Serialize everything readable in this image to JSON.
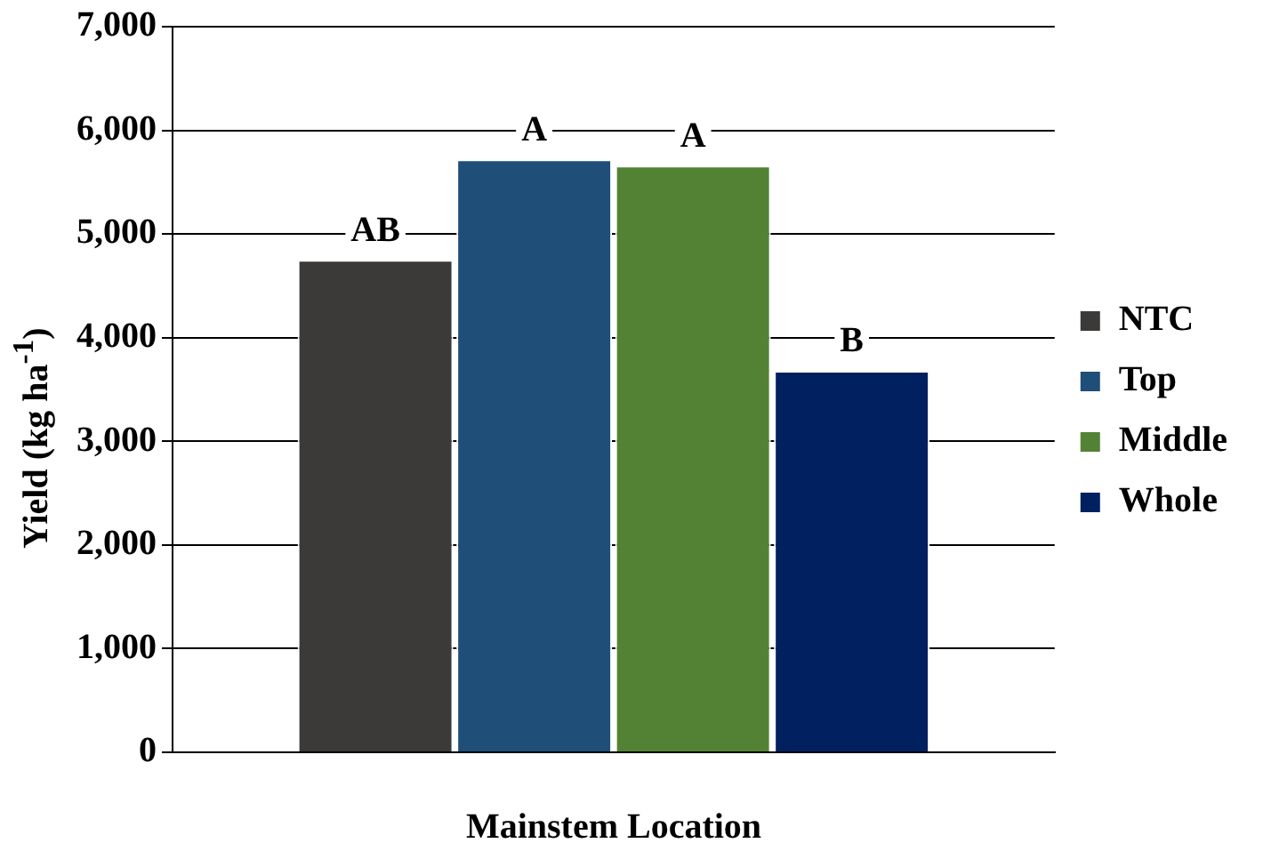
{
  "chart_data": {
    "type": "bar",
    "xlabel": "Mainstem Location",
    "ylabel": "Yield (kg ha$^{-1}$)",
    "categories": [
      null
    ],
    "series": [
      {
        "name": "NTC",
        "color": "#3b3a38",
        "values": [
          4750
        ],
        "value_labels": [
          "AB"
        ]
      },
      {
        "name": "Top",
        "color": "#1f4e79",
        "values": [
          5720
        ],
        "value_labels": [
          "A"
        ]
      },
      {
        "name": "Middle",
        "color": "#548235",
        "values": [
          5660
        ],
        "value_labels": [
          "A"
        ]
      },
      {
        "name": "Whole",
        "color": "#002060",
        "values": [
          3680
        ],
        "value_labels": [
          "B"
        ]
      }
    ],
    "ylim": [
      0,
      7000
    ],
    "yticks": [
      {
        "value": 0,
        "label": "0"
      },
      {
        "value": 1000,
        "label": "1,000"
      },
      {
        "value": 2000,
        "label": "2,000"
      },
      {
        "value": 3000,
        "label": "3,000"
      },
      {
        "value": 4000,
        "label": "4,000"
      },
      {
        "value": 5000,
        "label": "5,000"
      },
      {
        "value": 6000,
        "label": "6,000"
      },
      {
        "value": 7000,
        "label": "7,000"
      }
    ],
    "grid": "y",
    "legend": "right"
  }
}
